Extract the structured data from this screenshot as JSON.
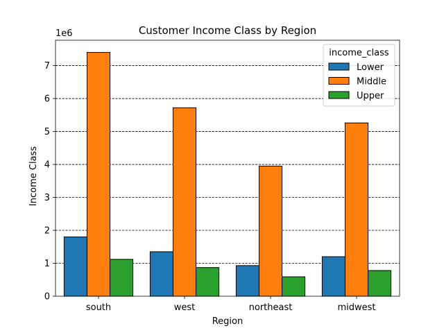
{
  "chart_data": {
    "type": "bar",
    "title": "Customer Income Class by Region",
    "xlabel": "Region",
    "ylabel": "Income Class",
    "y_multiplier_label": "1e6",
    "categories": [
      "south",
      "west",
      "northeast",
      "midwest"
    ],
    "series": [
      {
        "name": "Lower",
        "color": "#1f77b4",
        "values": [
          1800000,
          1350000,
          930000,
          1200000
        ]
      },
      {
        "name": "Middle",
        "color": "#ff7f0e",
        "values": [
          7400000,
          5720000,
          3950000,
          5260000
        ]
      },
      {
        "name": "Upper",
        "color": "#2ca02c",
        "values": [
          1120000,
          870000,
          590000,
          780000
        ]
      }
    ],
    "ylim": [
      0,
      7770000
    ],
    "yticks": [
      0,
      1000000,
      2000000,
      3000000,
      4000000,
      5000000,
      6000000,
      7000000
    ],
    "ytick_labels": [
      "0",
      "1",
      "2",
      "3",
      "4",
      "5",
      "6",
      "7"
    ],
    "grid": "y-dashed",
    "legend": {
      "title": "income_class",
      "placement": "top-right"
    }
  }
}
